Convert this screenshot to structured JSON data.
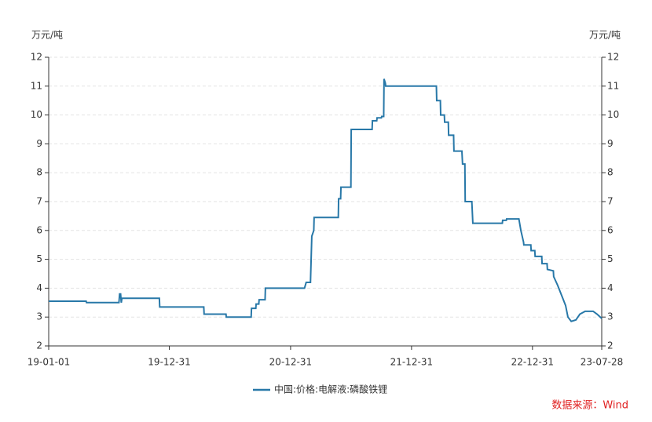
{
  "chart_data": {
    "type": "line",
    "y_label": "万元/吨",
    "y2_label": "万元/吨",
    "source": "数据来源：Wind",
    "x": [
      "19-01-01",
      "19-04-24",
      "19-04-25",
      "19-08-01",
      "19-08-03",
      "19-08-06",
      "19-08-08",
      "19-08-10",
      "19-12-01",
      "19-12-02",
      "20-04-13",
      "20-04-14",
      "20-06-19",
      "20-06-20",
      "20-09-03",
      "20-09-04",
      "20-09-17",
      "20-09-18",
      "20-09-26",
      "20-09-27",
      "20-10-15",
      "20-10-16",
      "21-02-11",
      "21-02-16",
      "21-03-01",
      "21-03-05",
      "21-03-11",
      "21-03-12",
      "21-05-24",
      "21-05-25",
      "21-05-31",
      "21-06-01",
      "21-07-01",
      "21-07-02",
      "21-09-03",
      "21-09-04",
      "21-09-17",
      "21-09-18",
      "21-10-01",
      "21-10-02",
      "21-10-08",
      "21-10-09",
      "21-10-13",
      "21-10-14",
      "22-03-16",
      "22-03-17",
      "22-03-28",
      "22-03-29",
      "22-04-09",
      "22-04-10",
      "22-04-21",
      "22-04-22",
      "22-05-07",
      "22-05-08",
      "22-06-01",
      "22-06-03",
      "22-06-10",
      "22-06-11",
      "22-07-01",
      "22-07-04",
      "22-10-01",
      "22-10-02",
      "22-10-13",
      "22-10-14",
      "22-11-20",
      "22-11-26",
      "22-12-04",
      "22-12-05",
      "22-12-26",
      "22-12-27",
      "23-01-07",
      "23-01-08",
      "23-01-28",
      "23-01-29",
      "23-02-13",
      "23-02-14",
      "23-03-04",
      "23-03-05",
      "23-03-17",
      "23-03-29",
      "23-04-10",
      "23-04-17",
      "23-04-27",
      "23-05-11",
      "23-05-23",
      "23-06-08",
      "23-07-02",
      "23-07-14",
      "23-07-28"
    ],
    "series": [
      {
        "name": "中国:价格:电解液:磷酸铁锂",
        "color": "#2878a8",
        "values": [
          3.55,
          3.55,
          3.5,
          3.5,
          3.8,
          3.8,
          3.5,
          3.65,
          3.65,
          3.35,
          3.35,
          3.1,
          3.1,
          3.0,
          3.0,
          3.3,
          3.3,
          3.45,
          3.45,
          3.6,
          3.6,
          4.0,
          4.0,
          4.2,
          4.2,
          5.8,
          6.0,
          6.45,
          6.45,
          7.1,
          7.1,
          7.5,
          7.5,
          9.5,
          9.5,
          9.8,
          9.8,
          9.9,
          9.9,
          9.95,
          9.95,
          11.25,
          11.1,
          11.0,
          11.0,
          10.5,
          10.5,
          10.0,
          10.0,
          9.75,
          9.75,
          9.3,
          9.3,
          8.75,
          8.75,
          8.3,
          8.3,
          7.0,
          7.0,
          6.25,
          6.25,
          6.35,
          6.35,
          6.4,
          6.4,
          6.0,
          5.6,
          5.5,
          5.5,
          5.3,
          5.3,
          5.1,
          5.1,
          4.85,
          4.85,
          4.65,
          4.6,
          4.4,
          4.1,
          3.75,
          3.4,
          3.0,
          2.85,
          2.9,
          3.1,
          3.2,
          3.2,
          3.1,
          2.95
        ]
      }
    ],
    "xlim": [
      "19-01-01",
      "23-07-28"
    ],
    "xticks": [
      "19-01-01",
      "19-12-31",
      "20-12-31",
      "21-12-31",
      "22-12-31",
      "23-07-28"
    ],
    "ylim": [
      2,
      12
    ],
    "yticks": [
      2,
      3,
      4,
      5,
      6,
      7,
      8,
      9,
      10,
      11,
      12
    ],
    "y2lim": [
      2,
      12
    ],
    "y2ticks": [
      2,
      3,
      4,
      5,
      6,
      7,
      8,
      9,
      10,
      11,
      12
    ],
    "grid": true
  }
}
